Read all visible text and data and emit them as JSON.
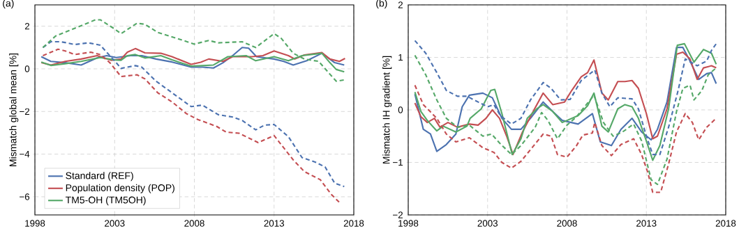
{
  "chart_data": [
    {
      "type": "line",
      "title": "(a)",
      "ylabel": "Mismatch global mean [%]",
      "xlim": [
        1998,
        2018
      ],
      "ylim": [
        -6.85,
        3.0
      ],
      "xticks": [
        1998,
        2003,
        2008,
        2013,
        2018
      ],
      "yticks": [
        {
          "value": -6,
          "label": "−6"
        },
        {
          "value": -4,
          "label": "−4"
        },
        {
          "value": -2,
          "label": "−2"
        },
        0,
        2
      ],
      "grid": true,
      "legend": "bottom left",
      "series": [
        {
          "name": "Standard (REF)",
          "color": "#4c72b0",
          "line_style": "solid",
          "x": [
            1998.4,
            1999.0,
            1999.9,
            2000.9,
            2001.9,
            2002.5,
            2003.1,
            2004.0,
            2004.7,
            2005.6,
            2006.6,
            2007.8,
            2008.5,
            2009.2,
            2009.8,
            2010.4,
            2011.0,
            2011.4,
            2011.9,
            2013.0,
            2013.6,
            2014.2,
            2015.05,
            2016.0,
            2016.8,
            2017.4
          ],
          "values": [
            0.57,
            0.35,
            0.29,
            0.18,
            0.51,
            0.62,
            0.53,
            0.62,
            0.62,
            0.46,
            0.32,
            0.08,
            0.08,
            0.04,
            0.29,
            0.62,
            1.0,
            0.97,
            0.57,
            0.46,
            0.35,
            0.18,
            0.38,
            0.73,
            0.29,
            0.18
          ]
        },
        {
          "name": "Population density (POP)",
          "color": "#c44e52",
          "line_style": "solid",
          "x": [
            1998.4,
            1999.0,
            1999.9,
            2000.9,
            2001.9,
            2002.8,
            2003.4,
            2003.8,
            2004.3,
            2004.9,
            2005.9,
            2006.6,
            2007.8,
            2008.4,
            2008.9,
            2009.8,
            2010.4,
            2011.6,
            2012.3,
            2013.0,
            2013.9,
            2014.3,
            2014.9,
            2016.0,
            2016.5,
            2017.1,
            2017.45
          ],
          "values": [
            0.29,
            0.18,
            0.35,
            0.46,
            0.62,
            0.4,
            0.46,
            0.78,
            0.95,
            0.75,
            0.73,
            0.57,
            0.21,
            0.31,
            0.46,
            0.35,
            0.57,
            0.57,
            0.62,
            0.84,
            0.62,
            0.46,
            0.65,
            0.76,
            0.46,
            0.35,
            0.49
          ]
        },
        {
          "name": "TM5-OH (TM5OH)",
          "color": "#55a868",
          "line_style": "solid",
          "x": [
            1998.4,
            1999.0,
            1999.9,
            2000.9,
            2002.1,
            2003.0,
            2003.4,
            2003.8,
            2004.3,
            2004.9,
            2005.9,
            2006.6,
            2007.8,
            2008.5,
            2009.2,
            2010.1,
            2011.25,
            2011.85,
            2013.0,
            2013.9,
            2014.75,
            2016.0,
            2016.5,
            2016.9,
            2017.4
          ],
          "values": [
            0.32,
            0.16,
            0.24,
            0.35,
            0.53,
            0.42,
            0.4,
            0.62,
            0.67,
            0.51,
            0.62,
            0.42,
            0.13,
            0.15,
            0.18,
            0.57,
            0.62,
            0.38,
            0.57,
            0.38,
            0.62,
            0.73,
            0.29,
            -0.03,
            -0.14
          ]
        },
        {
          "color": "#4c72b0",
          "line_style": "dashed",
          "x": [
            1998.5,
            1999.0,
            1999.6,
            2000.0,
            2000.5,
            2001.35,
            2002.1,
            2002.5,
            2003.1,
            2003.4,
            2004.3,
            2004.7,
            2005.6,
            2006.6,
            2007.8,
            2008.5,
            2009.5,
            2010.4,
            2011.0,
            2011.85,
            2012.4,
            2013.0,
            2013.9,
            2014.75,
            2015.6,
            2016.2,
            2016.8,
            2017.4
          ],
          "values": [
            1.0,
            1.27,
            1.27,
            1.22,
            1.14,
            1.22,
            1.11,
            0.78,
            0.29,
            0.02,
            0.15,
            0.08,
            -0.58,
            -1.12,
            -1.77,
            -1.7,
            -2.15,
            -2.26,
            -2.42,
            -2.86,
            -2.64,
            -2.61,
            -3.18,
            -4.16,
            -4.38,
            -4.6,
            -5.36,
            -5.52
          ]
        },
        {
          "color": "#c44e52",
          "line_style": "dashed",
          "x": [
            1998.5,
            1999.45,
            1999.9,
            2000.5,
            2001.5,
            2002.1,
            2002.7,
            2003.4,
            2004.4,
            2004.9,
            2005.7,
            2006.6,
            2007.5,
            2008.2,
            2009.4,
            2010.0,
            2010.8,
            2012.0,
            2013.0,
            2014.2,
            2014.9,
            2015.9,
            2016.6,
            2017.2
          ],
          "values": [
            0.62,
            0.92,
            0.84,
            0.67,
            0.78,
            0.67,
            0.29,
            -0.36,
            -0.28,
            -0.47,
            -1.12,
            -1.55,
            -2.1,
            -2.37,
            -2.7,
            -2.97,
            -3.02,
            -3.46,
            -3.13,
            -4.27,
            -4.82,
            -5.2,
            -5.9,
            -6.34
          ]
        },
        {
          "color": "#55a868",
          "line_style": "dashed",
          "x": [
            1998.5,
            1999.3,
            2000.76,
            2001.8,
            2002.1,
            2003.0,
            2003.4,
            2004.4,
            2004.9,
            2005.7,
            2006.9,
            2008.0,
            2008.9,
            2009.5,
            2011.0,
            2011.85,
            2013.0,
            2013.45,
            2014.2,
            2014.9,
            2015.8,
            2016.5,
            2016.9,
            2017.4
          ],
          "values": [
            1.0,
            1.54,
            1.98,
            2.3,
            2.3,
            1.87,
            1.65,
            2.14,
            2.09,
            1.71,
            1.43,
            1.16,
            1.33,
            1.22,
            1.27,
            1.0,
            1.65,
            1.43,
            0.73,
            0.46,
            0.35,
            -0.25,
            -0.58,
            -0.52
          ]
        }
      ]
    },
    {
      "type": "line",
      "title": "(b)",
      "ylabel": "Mismatch IH gradient [%]",
      "xlim": [
        1998,
        2018
      ],
      "ylim": [
        -2,
        2
      ],
      "xticks": [
        1998,
        2003,
        2008,
        2013,
        2018
      ],
      "yticks": [
        {
          "value": -2,
          "label": "−2"
        },
        {
          "value": -1,
          "label": "−1"
        },
        0,
        1,
        2
      ],
      "grid": true,
      "series": [
        {
          "color": "#4c72b0",
          "line_style": "solid",
          "x": [
            1998.42,
            1998.95,
            1999.4,
            1999.8,
            2000.4,
            2001.0,
            2001.4,
            2001.85,
            2002.7,
            2003.3,
            2003.9,
            2004.5,
            2005.1,
            2005.7,
            2006.5,
            2007.1,
            2007.7,
            2008.7,
            2009.6,
            2010.1,
            2010.8,
            2011.4,
            2012.1,
            2012.7,
            2013.3,
            2013.7,
            2014.3,
            2014.9,
            2015.3,
            2015.75,
            2016.3,
            2016.8,
            2017.1,
            2017.4
          ],
          "values": [
            0.3,
            -0.37,
            -0.46,
            -0.79,
            -0.66,
            -0.46,
            0.06,
            0.28,
            0.32,
            0.23,
            -0.16,
            -0.37,
            -0.37,
            -0.16,
            0.15,
            -0.03,
            -0.2,
            -0.27,
            -0.07,
            -0.61,
            -0.68,
            -0.37,
            -0.16,
            -0.42,
            -0.57,
            -0.37,
            0.15,
            1.19,
            1.19,
            0.93,
            0.58,
            0.69,
            0.71,
            0.5
          ]
        },
        {
          "color": "#c44e52",
          "line_style": "solid",
          "x": [
            1998.42,
            1998.8,
            1999.2,
            1999.65,
            2000.0,
            2000.5,
            2001.1,
            2001.85,
            2002.4,
            2002.9,
            2003.3,
            2003.75,
            2004.2,
            2004.6,
            2005.2,
            2005.8,
            2006.5,
            2007.1,
            2007.85,
            2008.3,
            2008.9,
            2009.3,
            2009.7,
            2010.2,
            2010.6,
            2011.2,
            2011.65,
            2012.1,
            2012.5,
            2013.0,
            2013.4,
            2013.7,
            2014.3,
            2014.9,
            2015.3,
            2015.75,
            2016.2,
            2016.6,
            2017.1,
            2017.4
          ],
          "values": [
            0.13,
            -0.13,
            -0.24,
            -0.16,
            -0.33,
            -0.24,
            -0.33,
            -0.27,
            -0.29,
            -0.16,
            0.0,
            -0.16,
            -0.5,
            -0.85,
            -0.42,
            -0.07,
            0.32,
            0.1,
            0.15,
            0.37,
            0.63,
            0.71,
            0.95,
            0.32,
            0.19,
            0.54,
            0.54,
            0.56,
            0.41,
            -0.07,
            -0.55,
            -0.5,
            0.02,
            1.06,
            1.1,
            0.97,
            0.58,
            0.8,
            0.84,
            0.8
          ]
        },
        {
          "color": "#55a868",
          "line_style": "solid",
          "x": [
            1998.42,
            1998.8,
            1999.2,
            1999.8,
            2000.2,
            2001.0,
            2001.7,
            2001.9,
            2002.6,
            2003.2,
            2003.45,
            2003.9,
            2004.55,
            2005.1,
            2005.5,
            2006.1,
            2006.5,
            2007.1,
            2007.7,
            2008.7,
            2009.3,
            2009.7,
            2010.2,
            2010.6,
            2011.2,
            2011.65,
            2012.1,
            2012.5,
            2013.0,
            2013.4,
            2013.85,
            2014.4,
            2014.95,
            2015.4,
            2016.0,
            2016.6,
            2017.1,
            2017.4
          ],
          "values": [
            0.34,
            -0.03,
            -0.2,
            -0.4,
            -0.31,
            -0.42,
            -0.31,
            -0.16,
            0.02,
            0.37,
            0.39,
            -0.07,
            -0.85,
            -0.55,
            -0.16,
            0.02,
            0.1,
            -0.03,
            -0.24,
            -0.11,
            0.08,
            0.32,
            -0.31,
            -0.42,
            0.02,
            0.1,
            0.06,
            -0.16,
            -0.59,
            -0.96,
            -0.68,
            0.02,
            1.23,
            1.26,
            0.91,
            1.15,
            1.08,
            0.87
          ]
        },
        {
          "color": "#4c72b0",
          "line_style": "dashed",
          "x": [
            1998.42,
            1999.1,
            1999.8,
            2000.4,
            2001.1,
            2001.7,
            2002.4,
            2003.0,
            2003.4,
            2003.8,
            2004.5,
            2005.1,
            2005.7,
            2006.5,
            2007.0,
            2007.6,
            2008.2,
            2008.9,
            2009.75,
            2010.2,
            2010.7,
            2011.2,
            2012.1,
            2012.5,
            2013.0,
            2013.4,
            2013.85,
            2014.4,
            2015.0,
            2015.45,
            2016.2,
            2016.8,
            2017.1,
            2017.4
          ],
          "values": [
            1.32,
            1.08,
            0.71,
            0.37,
            0.26,
            0.26,
            0.15,
            0.06,
            0.1,
            -0.11,
            -0.27,
            -0.16,
            0.19,
            0.52,
            0.41,
            0.19,
            0.2,
            0.56,
            0.76,
            0.32,
            0.06,
            0.23,
            0.21,
            0.02,
            -0.5,
            -0.85,
            -0.85,
            -0.33,
            0.37,
            0.97,
            0.84,
            0.93,
            1.13,
            1.26
          ]
        },
        {
          "color": "#c44e52",
          "line_style": "dashed",
          "x": [
            1998.42,
            1998.95,
            1999.8,
            2000.4,
            2001.0,
            2001.85,
            2002.7,
            2003.4,
            2003.9,
            2004.5,
            2005.1,
            2005.8,
            2006.5,
            2007.0,
            2007.4,
            2008.0,
            2008.6,
            2009.0,
            2009.6,
            2009.75,
            2010.2,
            2010.8,
            2011.4,
            2012.2,
            2012.7,
            2013.1,
            2013.4,
            2013.9,
            2014.4,
            2014.9,
            2015.45,
            2015.9,
            2016.3,
            2016.8,
            2017.4
          ],
          "values": [
            0.47,
            0.1,
            -0.16,
            -0.46,
            -0.61,
            -0.53,
            -0.72,
            -0.81,
            -1.0,
            -1.11,
            -0.98,
            -0.72,
            -0.46,
            -0.5,
            -0.85,
            -0.9,
            -0.68,
            -0.48,
            -0.44,
            -0.24,
            -0.68,
            -0.87,
            -0.66,
            -0.55,
            -0.85,
            -1.2,
            -1.57,
            -1.57,
            -1.03,
            -0.42,
            -0.07,
            -0.24,
            -0.57,
            -0.33,
            -0.16
          ]
        },
        {
          "color": "#55a868",
          "line_style": "dashed",
          "x": [
            1998.42,
            1999.1,
            1999.8,
            2000.4,
            2001.1,
            2001.85,
            2002.7,
            2003.25,
            2003.75,
            2004.5,
            2005.1,
            2006.0,
            2006.4,
            2006.8,
            2007.4,
            2008.0,
            2008.6,
            2009.0,
            2009.7,
            2010.3,
            2010.9,
            2011.5,
            2012.2,
            2012.7,
            2013.3,
            2013.7,
            2014.3,
            2014.9,
            2015.3,
            2015.75,
            2016.0,
            2016.5,
            2016.9,
            2017.4
          ],
          "values": [
            1.04,
            0.67,
            0.19,
            -0.16,
            -0.33,
            -0.29,
            -0.5,
            -0.46,
            -0.63,
            -0.85,
            -0.68,
            -0.33,
            -0.05,
            -0.2,
            -0.55,
            -0.29,
            -0.13,
            0.02,
            0.28,
            -0.24,
            -0.5,
            -0.42,
            -0.27,
            -0.59,
            -1.33,
            -1.42,
            -0.94,
            -0.03,
            0.41,
            0.47,
            0.19,
            0.37,
            0.67,
            0.8
          ]
        }
      ]
    }
  ]
}
